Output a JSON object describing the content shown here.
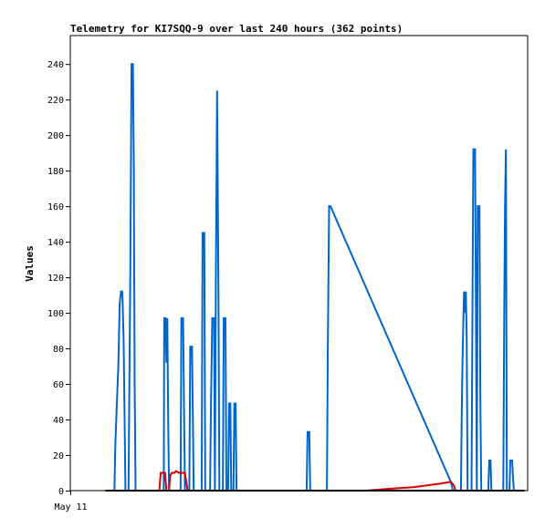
{
  "chart_data": {
    "type": "line",
    "title": "Telemetry for KI7SQQ-9 over last 240 hours (362 points)",
    "ylabel": "Values",
    "xlabel": "",
    "x_tick_labels": [
      {
        "x": 0,
        "label": "May 11"
      }
    ],
    "xlim": [
      0,
      100
    ],
    "ylim": [
      0,
      256
    ],
    "yticks": [
      0,
      20,
      40,
      60,
      80,
      100,
      120,
      140,
      160,
      180,
      200,
      220,
      240
    ],
    "grid": false,
    "legend": "none",
    "series": [
      {
        "color": "#0066cc",
        "points": [
          [
            8.0,
            0
          ],
          [
            10.0,
            0
          ],
          [
            10.2,
            25
          ],
          [
            10.5,
            45
          ],
          [
            10.9,
            70
          ],
          [
            11.2,
            105
          ],
          [
            11.5,
            112
          ],
          [
            11.8,
            112
          ],
          [
            12.1,
            85
          ],
          [
            12.3,
            45
          ],
          [
            12.5,
            0
          ],
          [
            13.2,
            0
          ],
          [
            13.4,
            60
          ],
          [
            13.6,
            120
          ],
          [
            13.9,
            240
          ],
          [
            14.2,
            240
          ],
          [
            14.4,
            180
          ],
          [
            14.6,
            60
          ],
          [
            14.8,
            0
          ],
          [
            21.2,
            0
          ],
          [
            21.3,
            97
          ],
          [
            21.6,
            97
          ],
          [
            21.8,
            72
          ],
          [
            22.0,
            97
          ],
          [
            22.2,
            40
          ],
          [
            22.4,
            0
          ],
          [
            25.0,
            0
          ],
          [
            25.2,
            97
          ],
          [
            25.6,
            97
          ],
          [
            25.8,
            45
          ],
          [
            26.0,
            0
          ],
          [
            27.0,
            0
          ],
          [
            27.2,
            81
          ],
          [
            27.6,
            81
          ],
          [
            27.8,
            40
          ],
          [
            28.0,
            0
          ],
          [
            29.8,
            0
          ],
          [
            30.0,
            145
          ],
          [
            30.4,
            145
          ],
          [
            30.6,
            0
          ],
          [
            31.7,
            0
          ],
          [
            31.9,
            48
          ],
          [
            32.2,
            97
          ],
          [
            32.6,
            97
          ],
          [
            32.8,
            0
          ],
          [
            33.0,
            113
          ],
          [
            33.3,
            225
          ],
          [
            33.6,
            113
          ],
          [
            33.8,
            0
          ],
          [
            34.6,
            0
          ],
          [
            34.8,
            97
          ],
          [
            35.2,
            97
          ],
          [
            35.4,
            0
          ],
          [
            35.8,
            0
          ],
          [
            36.0,
            49
          ],
          [
            36.3,
            49
          ],
          [
            36.5,
            0
          ],
          [
            37.0,
            0
          ],
          [
            37.2,
            49
          ],
          [
            37.5,
            49
          ],
          [
            37.7,
            0
          ],
          [
            53.6,
            0
          ],
          [
            53.8,
            33
          ],
          [
            54.2,
            33
          ],
          [
            54.4,
            0
          ],
          [
            58.2,
            0
          ],
          [
            58.4,
            80
          ],
          [
            58.7,
            160
          ],
          [
            59.0,
            160
          ],
          [
            86.3,
            5
          ],
          [
            86.8,
            0
          ],
          [
            88.6,
            0
          ],
          [
            88.8,
            48
          ],
          [
            89.0,
            80
          ],
          [
            89.3,
            112
          ],
          [
            89.5,
            100
          ],
          [
            89.7,
            112
          ],
          [
            89.9,
            88
          ],
          [
            90.1,
            0
          ],
          [
            91.0,
            0
          ],
          [
            91.2,
            97
          ],
          [
            91.4,
            192
          ],
          [
            91.8,
            192
          ],
          [
            92.0,
            97
          ],
          [
            92.2,
            0
          ],
          [
            92.4,
            160
          ],
          [
            92.8,
            160
          ],
          [
            93.0,
            49
          ],
          [
            93.2,
            0
          ],
          [
            94.8,
            0
          ],
          [
            95.0,
            17
          ],
          [
            95.3,
            17
          ],
          [
            95.5,
            0
          ],
          [
            98.2,
            0
          ],
          [
            98.4,
            97
          ],
          [
            98.6,
            160
          ],
          [
            98.8,
            192
          ],
          [
            99.0,
            0
          ],
          [
            99.6,
            0
          ],
          [
            99.8,
            17
          ],
          [
            100.2,
            17
          ],
          [
            100.4,
            8
          ],
          [
            100.6,
            0
          ],
          [
            102.4,
            0
          ]
        ]
      },
      {
        "color": "#e00000",
        "points": [
          [
            20.2,
            0
          ],
          [
            20.5,
            10
          ],
          [
            21.5,
            10
          ],
          [
            21.8,
            0
          ],
          [
            22.4,
            0
          ],
          [
            22.6,
            8
          ],
          [
            23.0,
            10
          ],
          [
            23.6,
            10
          ],
          [
            24.0,
            11
          ],
          [
            24.6,
            10
          ],
          [
            25.0,
            10
          ],
          [
            25.4,
            10
          ],
          [
            26.0,
            10
          ],
          [
            26.6,
            0
          ],
          [
            67.0,
            0
          ],
          [
            72.0,
            1
          ],
          [
            78.0,
            2
          ],
          [
            84.0,
            4
          ],
          [
            86.3,
            5
          ],
          [
            87.0,
            3
          ],
          [
            87.4,
            0
          ]
        ]
      },
      {
        "color": "#000000",
        "points": [
          [
            8.0,
            0
          ],
          [
            103.0,
            0
          ]
        ]
      }
    ]
  }
}
